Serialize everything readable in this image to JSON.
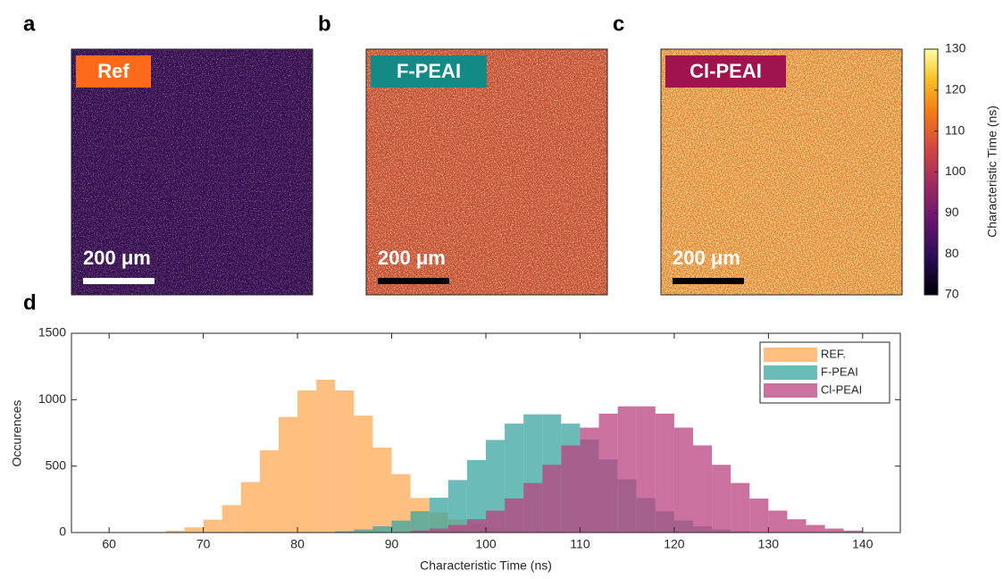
{
  "panels": [
    {
      "letter": "a",
      "label": "Ref",
      "scale_bar": "200 μm"
    },
    {
      "letter": "b",
      "label": "F-PEAI",
      "scale_bar": "200 μm"
    },
    {
      "letter": "c",
      "label": "Cl-PEAI",
      "scale_bar": "200 μm"
    }
  ],
  "colorbar": {
    "label": "Characteristic Time (ns)",
    "lim": [
      70,
      130
    ],
    "ticks": [
      70,
      80,
      90,
      100,
      110,
      120,
      130
    ]
  },
  "chart_data": {
    "type": "histogram",
    "letter": "d",
    "x_label": "Characteristic Time (ns)",
    "y_label": "Occurences",
    "bins": [
      64,
      66,
      68,
      70,
      72,
      74,
      76,
      78,
      80,
      82,
      84,
      86,
      88,
      90,
      92,
      94,
      96,
      98,
      100,
      102,
      104,
      106,
      108,
      110,
      112,
      114,
      116,
      118,
      120,
      122,
      124,
      126,
      128,
      130,
      132,
      134,
      136,
      138,
      140
    ],
    "series": [
      {
        "name": "REF.",
        "color": "#fdaa55",
        "values": [
          4,
          14,
          39,
          97,
          206,
          380,
          620,
          870,
          1070,
          1150,
          1070,
          880,
          640,
          440,
          260,
          150,
          100,
          60,
          35,
          20,
          10,
          5,
          0,
          0,
          0,
          0,
          0,
          0,
          0,
          0,
          0,
          0,
          0,
          0,
          0,
          0,
          0,
          0
        ]
      },
      {
        "name": "F-PEAI",
        "color": "#3aa6a2",
        "values": [
          0,
          0,
          0,
          0,
          0,
          0,
          0,
          0,
          0,
          0,
          10,
          23,
          47,
          90,
          160,
          262,
          395,
          546,
          697,
          820,
          890,
          890,
          820,
          700,
          550,
          400,
          260,
          160,
          90,
          47,
          23,
          10,
          4,
          0,
          0,
          0,
          0,
          0
        ]
      },
      {
        "name": "Cl-PEAI",
        "color": "#b8417f",
        "values": [
          0,
          0,
          0,
          0,
          0,
          0,
          0,
          0,
          0,
          0,
          0,
          0,
          0,
          0,
          15,
          30,
          57,
          100,
          165,
          256,
          373,
          510,
          656,
          790,
          895,
          950,
          950,
          895,
          790,
          656,
          510,
          373,
          256,
          165,
          100,
          57,
          30,
          15
        ]
      }
    ],
    "xlim": [
      56,
      144
    ],
    "ylim": [
      0,
      1500
    ],
    "xticks": [
      60,
      70,
      80,
      90,
      100,
      110,
      120,
      130,
      140
    ],
    "yticks": [
      0,
      500,
      1000,
      1500
    ],
    "legend": "upper right"
  }
}
